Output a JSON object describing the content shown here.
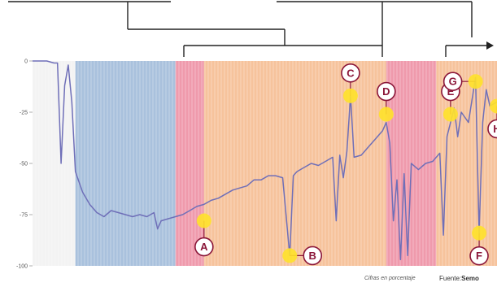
{
  "chart_data": {
    "type": "line",
    "ylim": [
      -100,
      0
    ],
    "yticks": [
      "0",
      "-25",
      "-50",
      "-75",
      "-100"
    ],
    "grid": true,
    "band_colors": {
      "blue": "#a9c1dd",
      "pink": "#ef9aac",
      "orange": "#f6c39c"
    },
    "line_color": "#6f6fb8",
    "marker_fill": "#ffe22a",
    "marker_ring": "#8a1538",
    "bands": [
      {
        "color": "blue",
        "x0": 12,
        "x1": 40
      },
      {
        "color": "pink",
        "x0": 40,
        "x1": 48
      },
      {
        "color": "orange",
        "x0": 48,
        "x1": 99
      },
      {
        "color": "pink",
        "x0": 99,
        "x1": 113
      },
      {
        "color": "orange",
        "x0": 113,
        "x1": 130
      }
    ],
    "series": [
      {
        "points": [
          [
            0,
            0
          ],
          [
            2,
            0
          ],
          [
            4,
            0
          ],
          [
            6,
            -1
          ],
          [
            7,
            -1
          ],
          [
            8,
            -50
          ],
          [
            9,
            -12
          ],
          [
            10,
            -2
          ],
          [
            11,
            -20
          ],
          [
            12,
            -54
          ],
          [
            14,
            -64
          ],
          [
            16,
            -70
          ],
          [
            18,
            -74
          ],
          [
            20,
            -76
          ],
          [
            22,
            -73
          ],
          [
            24,
            -74
          ],
          [
            26,
            -75
          ],
          [
            28,
            -76
          ],
          [
            30,
            -75
          ],
          [
            32,
            -76
          ],
          [
            34,
            -74
          ],
          [
            35,
            -82
          ],
          [
            36,
            -78
          ],
          [
            38,
            -77
          ],
          [
            40,
            -76
          ],
          [
            42,
            -75
          ],
          [
            44,
            -73
          ],
          [
            46,
            -71
          ],
          [
            48,
            -70
          ],
          [
            50,
            -68
          ],
          [
            52,
            -67
          ],
          [
            54,
            -65
          ],
          [
            56,
            -63
          ],
          [
            58,
            -62
          ],
          [
            60,
            -61
          ],
          [
            62,
            -58
          ],
          [
            64,
            -58
          ],
          [
            66,
            -56
          ],
          [
            68,
            -56
          ],
          [
            70,
            -57
          ],
          [
            72,
            -95
          ],
          [
            73,
            -56
          ],
          [
            74,
            -54
          ],
          [
            76,
            -52
          ],
          [
            78,
            -50
          ],
          [
            80,
            -51
          ],
          [
            82,
            -49
          ],
          [
            84,
            -47
          ],
          [
            85,
            -78
          ],
          [
            86,
            -46
          ],
          [
            87,
            -57
          ],
          [
            88,
            -44
          ],
          [
            89,
            -17
          ],
          [
            90,
            -47
          ],
          [
            92,
            -46
          ],
          [
            94,
            -42
          ],
          [
            96,
            -38
          ],
          [
            98,
            -34
          ],
          [
            99,
            -30
          ],
          [
            100,
            -40
          ],
          [
            101,
            -78
          ],
          [
            102,
            -58
          ],
          [
            103,
            -97
          ],
          [
            104,
            -55
          ],
          [
            105,
            -95
          ],
          [
            106,
            -50
          ],
          [
            108,
            -53
          ],
          [
            110,
            -50
          ],
          [
            112,
            -49
          ],
          [
            114,
            -45
          ],
          [
            115,
            -85
          ],
          [
            116,
            -37
          ],
          [
            117,
            -30
          ],
          [
            118,
            -23
          ],
          [
            119,
            -37
          ],
          [
            120,
            -25
          ],
          [
            122,
            -30
          ],
          [
            124,
            -8
          ],
          [
            125,
            -84
          ],
          [
            126,
            -30
          ],
          [
            127,
            -14
          ],
          [
            128,
            -22
          ],
          [
            130,
            -20
          ]
        ]
      }
    ],
    "markers": [
      {
        "label": "A",
        "x": 48,
        "y": -78
      },
      {
        "label": "B",
        "x": 72,
        "y": -95
      },
      {
        "label": "C",
        "x": 89,
        "y": -17
      },
      {
        "label": "D",
        "x": 99,
        "y": -26
      },
      {
        "label": "E",
        "x": 117,
        "y": -26
      },
      {
        "label": "F",
        "x": 125,
        "y": -84
      },
      {
        "label": "G",
        "x": 124,
        "y": -10
      },
      {
        "label": "H",
        "x": 130,
        "y": -22
      }
    ]
  },
  "footer": {
    "note": "Cifras en porcentaje",
    "source_prefix": "Fuente:",
    "source_name": "Semo"
  }
}
